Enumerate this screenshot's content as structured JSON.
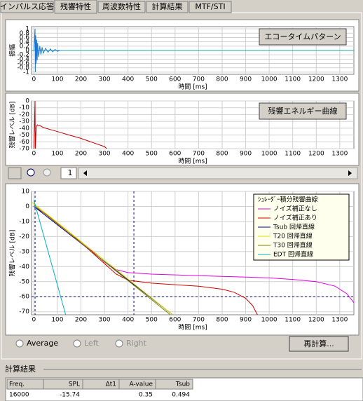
{
  "tabs": [
    "インパルス応答",
    "残響特性",
    "周波数特性",
    "計算結果",
    "MTF/STI"
  ],
  "active_tab": 1,
  "chart_data": [
    {
      "type": "line",
      "ylabel": "振幅",
      "xlabel": "時間 [ms]",
      "button": "エコータイムパターン",
      "xlim": [
        -10,
        1360
      ],
      "xticks": [
        0,
        100,
        200,
        300,
        400,
        500,
        600,
        700,
        800,
        900,
        1000,
        1100,
        1200,
        1300
      ],
      "ylim": [
        -1.1,
        1.1
      ],
      "yticks": [
        1,
        0.8,
        0.6,
        0.4,
        0.2,
        0,
        -0.2,
        -0.4,
        -0.6,
        -0.8,
        -1
      ],
      "grid": true,
      "zero_color": "#20a0b0",
      "series": [
        {
          "color": "#1e78d0",
          "x": [
            0,
            5,
            6,
            8,
            10,
            12,
            14,
            16,
            20,
            25,
            30,
            35,
            40,
            50,
            60,
            70,
            80,
            90,
            100,
            110
          ],
          "values": [
            0,
            1,
            -1,
            0.7,
            -0.6,
            0.5,
            -0.45,
            0.35,
            -0.3,
            0.2,
            -0.18,
            0.15,
            -0.12,
            0.1,
            -0.08,
            0.07,
            -0.06,
            0.05,
            -0.04,
            0
          ]
        }
      ]
    },
    {
      "type": "line",
      "ylabel": "残響レベル [dB]",
      "xlabel": "時間 [ms]",
      "button": "残響エネルギー曲線",
      "xlim": [
        -10,
        1360
      ],
      "xticks": [
        0,
        100,
        200,
        300,
        400,
        500,
        600,
        700,
        800,
        900,
        1000,
        1100,
        1200,
        1300
      ],
      "ylim": [
        -70,
        0
      ],
      "yticks": [
        0,
        -10,
        -20,
        -30,
        -40,
        -50,
        -60,
        -70
      ],
      "grid": true,
      "series": [
        {
          "color": "#c00000",
          "x": [
            0,
            5,
            6,
            10,
            15,
            20,
            30,
            40,
            50,
            70,
            90,
            110,
            150,
            200,
            250,
            300,
            310
          ],
          "values": [
            -70,
            0,
            -70,
            -38,
            -35,
            -36,
            -37,
            -39,
            -40,
            -42,
            -44,
            -46,
            -50,
            -55,
            -61,
            -67,
            -70
          ]
        }
      ]
    },
    {
      "type": "line",
      "ylabel": "残響レベル [dB]",
      "xlabel": "時間 [ms]",
      "legend_title": "ｼｭﾚｰﾀﾞｰ積分残響曲線",
      "xlim": [
        -10,
        1360
      ],
      "xticks": [
        0,
        100,
        200,
        300,
        400,
        500,
        600,
        700,
        800,
        900,
        1000,
        1100,
        1200,
        1300
      ],
      "ylim": [
        -72,
        10
      ],
      "yticks": [
        10,
        0,
        -10,
        -20,
        -30,
        -40,
        -50,
        -60,
        -70
      ],
      "grid": true,
      "ref_lines": {
        "color": "#000080",
        "y": [
          -60
        ],
        "x": [
          5,
          425
        ]
      },
      "series": [
        {
          "name": "ノイズ補正なし",
          "color": "#e000e0",
          "x": [
            0,
            50,
            100,
            150,
            200,
            250,
            300,
            350,
            400,
            500,
            600,
            700,
            800,
            900,
            1000,
            1100,
            1200,
            1280,
            1330,
            1360
          ],
          "values": [
            0,
            -5,
            -11,
            -17,
            -24,
            -30,
            -37,
            -42,
            -44,
            -45,
            -45.5,
            -46,
            -46.5,
            -47,
            -47.5,
            -48.5,
            -50,
            -53,
            -58,
            -64
          ]
        },
        {
          "name": "ノイズ補正あり",
          "color": "#d00000",
          "x": [
            0,
            50,
            100,
            150,
            200,
            250,
            300,
            350,
            400,
            500,
            600,
            700,
            800,
            850,
            900,
            930,
            950
          ],
          "values": [
            0,
            -5,
            -11,
            -17,
            -24,
            -31,
            -38,
            -45,
            -49,
            -51,
            -52,
            -53,
            -55,
            -57,
            -61,
            -66,
            -72
          ]
        },
        {
          "name": "Tsub 回帰直線",
          "color": "#000090",
          "x": [
            0,
            590
          ],
          "values": [
            0,
            -72
          ]
        },
        {
          "name": "T20 回帰直線",
          "color": "#e0e000",
          "x": [
            -10,
            590
          ],
          "values": [
            3,
            -72
          ]
        },
        {
          "name": "T30 回帰直線",
          "color": "#808000",
          "x": [
            0,
            580
          ],
          "values": [
            1,
            -72
          ]
        },
        {
          "name": "EDT 回帰直線",
          "color": "#00b0c0",
          "x": [
            0,
            135
          ],
          "values": [
            4,
            -72
          ]
        }
      ]
    }
  ],
  "toolbar": {
    "page": "1"
  },
  "radios": [
    "Average",
    "Left",
    "Right"
  ],
  "recalc_button": "再計算...",
  "results": {
    "title": "計算結果",
    "headers": [
      "Freq.",
      "SPL",
      "Δt1",
      "A-value",
      "Tsub"
    ],
    "rows": [
      [
        16000,
        -15.74,
        null,
        0.35,
        0.494
      ]
    ]
  }
}
